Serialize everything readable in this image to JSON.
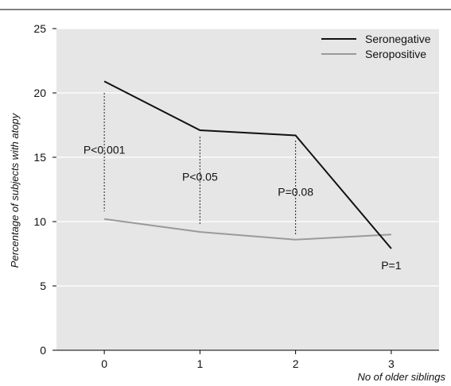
{
  "chart_data": {
    "type": "line",
    "xlabel": "No of older siblings",
    "ylabel": "Percentage of subjects with atopy",
    "categories": [
      "0",
      "1",
      "2",
      "3"
    ],
    "x": [
      0,
      1,
      2,
      3
    ],
    "xlim": [
      -0.5,
      3.5
    ],
    "ylim": [
      0,
      25
    ],
    "yticks": [
      0,
      5,
      10,
      15,
      20,
      25
    ],
    "grid": true,
    "legend_position": "top-right",
    "series": [
      {
        "name": "Seronegative",
        "values": [
          20.9,
          17.1,
          16.7,
          7.9
        ],
        "color": "#111111"
      },
      {
        "name": "Seropositive",
        "values": [
          10.2,
          9.2,
          8.6,
          9.0
        ],
        "color": "#9a9a9a"
      }
    ],
    "annotations": [
      {
        "text": "P<0.001",
        "x": 0,
        "label_y": 15.6,
        "line_from": 10.8,
        "line_to": 20.0
      },
      {
        "text": "P<0.05",
        "x": 1,
        "label_y": 13.5,
        "line_from": 9.8,
        "line_to": 16.6
      },
      {
        "text": "P=0.08",
        "x": 2,
        "label_y": 12.3,
        "line_from": 9.0,
        "line_to": 16.3
      },
      {
        "text": "P=1",
        "x": 3,
        "label_y": 6.6,
        "line_from": null,
        "line_to": null
      }
    ],
    "colors": {
      "background": "#e6e6e6",
      "grid": "#ffffff"
    }
  }
}
